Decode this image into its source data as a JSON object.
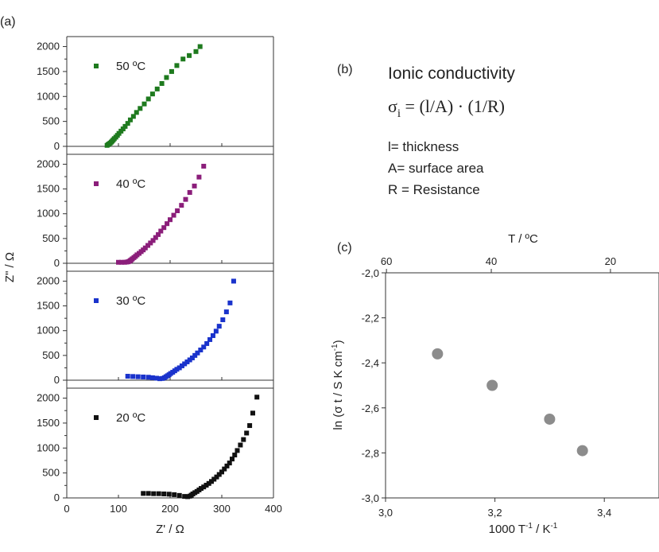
{
  "labels": {
    "a": "(a)",
    "b": "(b)",
    "c": "(c)"
  },
  "colors": {
    "50": "#1e7a1e",
    "40": "#8b1e7a",
    "30": "#1a33cc",
    "20": "#111111",
    "marker_c": "#8c8c8c",
    "axis": "#333333"
  },
  "info": {
    "title": "Ionic conductivity",
    "formula_lhs": "σ",
    "formula_sub": "i",
    "formula_rhs": " = (l/A) · (1/R)",
    "line1": "l= thickness",
    "line2": "A= surface area",
    "line3": "R = Resistance"
  },
  "chart_data": [
    {
      "type": "scatter",
      "panel": "a",
      "xlabel": "Z' / Ω",
      "ylabel": "Z\" / Ω",
      "xlim": [
        0,
        400
      ],
      "ylim": [
        0,
        2200
      ],
      "xticks": [
        "0",
        "100",
        "200",
        "300",
        "400"
      ],
      "yticks": [
        "0",
        "500",
        "1000",
        "1500",
        "2000"
      ],
      "marker": "square",
      "series": [
        {
          "name": "50 ºC",
          "color_key": "50",
          "x": [
            78,
            80,
            82,
            84,
            86,
            88,
            90,
            92,
            95,
            98,
            101,
            105,
            109,
            113,
            118,
            123,
            129,
            135,
            142,
            150,
            158,
            166,
            175,
            184,
            193,
            203,
            213,
            225,
            237,
            250,
            258
          ],
          "y": [
            20,
            35,
            50,
            65,
            85,
            105,
            130,
            155,
            185,
            220,
            260,
            305,
            350,
            400,
            460,
            530,
            600,
            680,
            760,
            850,
            950,
            1050,
            1150,
            1260,
            1380,
            1500,
            1620,
            1750,
            1820,
            1900,
            2000
          ]
        },
        {
          "name": "40 ºC",
          "color_key": "40",
          "x": [
            100,
            106,
            112,
            116,
            119,
            121,
            123,
            125,
            127,
            130,
            133,
            136,
            140,
            144,
            148,
            152,
            157,
            162,
            167,
            172,
            177,
            182,
            188,
            194,
            200,
            207,
            214,
            222,
            230,
            238,
            247,
            256,
            265
          ],
          "y": [
            20,
            20,
            20,
            25,
            30,
            40,
            55,
            70,
            90,
            115,
            140,
            170,
            200,
            235,
            270,
            310,
            360,
            410,
            460,
            520,
            580,
            650,
            720,
            800,
            880,
            970,
            1060,
            1170,
            1290,
            1430,
            1560,
            1740,
            1960
          ]
        },
        {
          "name": "30 ºC",
          "color_key": "30",
          "x": [
            118,
            128,
            138,
            148,
            158,
            166,
            174,
            180,
            185,
            189,
            192,
            195,
            198,
            201,
            205,
            209,
            213,
            218,
            223,
            228,
            233,
            238,
            243,
            248,
            253,
            259,
            265,
            271,
            277,
            283,
            289,
            295,
            302,
            309,
            316,
            323
          ],
          "y": [
            80,
            75,
            70,
            65,
            60,
            50,
            40,
            30,
            35,
            50,
            70,
            90,
            110,
            135,
            160,
            190,
            220,
            250,
            290,
            330,
            370,
            410,
            450,
            500,
            550,
            610,
            670,
            740,
            820,
            900,
            990,
            1090,
            1220,
            1380,
            1560,
            2000
          ]
        },
        {
          "name": "20 ºC",
          "color_key": "20",
          "x": [
            148,
            158,
            168,
            178,
            188,
            198,
            208,
            218,
            228,
            234,
            238,
            241,
            244,
            248,
            252,
            256,
            260,
            265,
            270,
            275,
            280,
            285,
            290,
            295,
            300,
            305,
            310,
            315,
            320,
            325,
            330,
            336,
            342,
            348,
            354,
            360,
            368
          ],
          "y": [
            90,
            90,
            85,
            85,
            80,
            75,
            65,
            50,
            30,
            25,
            35,
            55,
            80,
            105,
            130,
            160,
            190,
            220,
            255,
            290,
            330,
            375,
            420,
            470,
            520,
            580,
            640,
            700,
            780,
            860,
            950,
            1060,
            1170,
            1300,
            1450,
            1700,
            2020
          ]
        }
      ]
    },
    {
      "type": "scatter",
      "panel": "c",
      "xlabel_main": "1000 T",
      "xlabel_sup": "-1",
      "xlabel_tail": " / K",
      "xlabel_sup2": "-1",
      "ylabel_main": "ln (σ t  / S K cm",
      "ylabel_sup": "-1",
      "ylabel_tail": ")",
      "top_label": "T / ºC",
      "xlim": [
        3.0,
        3.5
      ],
      "ylim": [
        -3.0,
        -2.0
      ],
      "xticks": [
        "3,0",
        "3,2",
        "3,4"
      ],
      "xtick_values": [
        3.0,
        3.2,
        3.4
      ],
      "yticks": [
        "-3,0",
        "-2,8",
        "-2,6",
        "-2,4",
        "-2,2",
        "-2,0"
      ],
      "ytick_values": [
        -3.0,
        -2.8,
        -2.6,
        -2.4,
        -2.2,
        -2.0
      ],
      "top_ticks": [
        "60",
        "40",
        "20"
      ],
      "top_tick_celsius": [
        60,
        40,
        20
      ],
      "x": [
        3.095,
        3.195,
        3.3,
        3.36
      ],
      "y": [
        -2.36,
        -2.5,
        -2.65,
        -2.79
      ]
    }
  ]
}
